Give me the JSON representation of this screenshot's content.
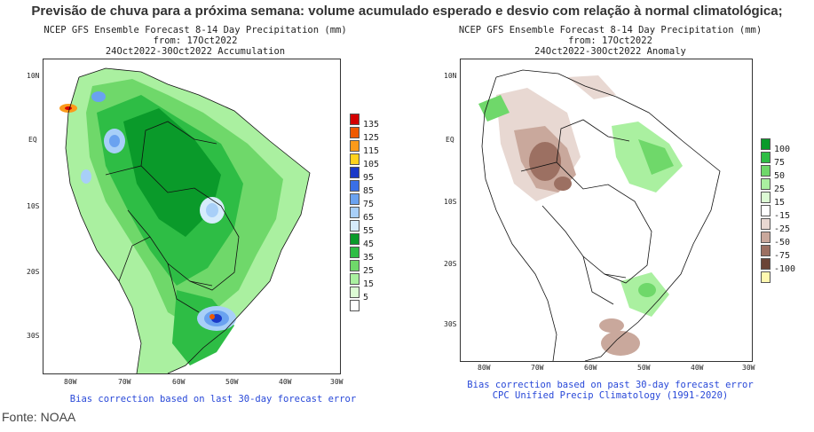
{
  "headline": "Previsão de chuva para a próxima semana: volume acumulado esperado e desvio com relação à normal climatológica;",
  "left_map": {
    "title_line1": "NCEP GFS Ensemble Forecast 8-14 Day Precipitation (mm)",
    "title_line2": "from: 17Oct2022",
    "title_line3": "24Oct2022-30Oct2022 Accumulation",
    "footer_line1": "Bias correction based on last 30-day forecast error",
    "lat_labels": [
      "10N",
      "EQ",
      "10S",
      "20S",
      "30S"
    ],
    "lon_labels": [
      "80W",
      "70W",
      "60W",
      "50W",
      "40W",
      "30W"
    ],
    "legend": [
      {
        "label": "135",
        "color": "#d40000"
      },
      {
        "label": "125",
        "color": "#ef5a00"
      },
      {
        "label": "115",
        "color": "#fb9a1a"
      },
      {
        "label": "105",
        "color": "#ffd21e"
      },
      {
        "label": "95",
        "color": "#1a39c8"
      },
      {
        "label": "85",
        "color": "#3a6fe6"
      },
      {
        "label": "75",
        "color": "#6aa2f0"
      },
      {
        "label": "65",
        "color": "#a8cff8"
      },
      {
        "label": "55",
        "color": "#d6ecfc"
      },
      {
        "label": "45",
        "color": "#0a9a2a"
      },
      {
        "label": "35",
        "color": "#2ebd45"
      },
      {
        "label": "25",
        "color": "#6fd86a"
      },
      {
        "label": "15",
        "color": "#aaf0a0"
      },
      {
        "label": "5",
        "color": "#dcfbd4"
      },
      {
        "label": "",
        "color": "#ffffff"
      }
    ]
  },
  "right_map": {
    "title_line1": "NCEP GFS Ensemble Forecast 8-14 Day Precipitation (mm)",
    "title_line2": "from: 17Oct2022",
    "title_line3": "24Oct2022-30Oct2022 Anomaly",
    "footer_line1": "Bias correction based on past 30-day forecast error",
    "footer_line2": "CPC Unified Precip Climatology (1991-2020)",
    "lat_labels": [
      "10N",
      "EQ",
      "10S",
      "20S",
      "30S"
    ],
    "lon_labels": [
      "80W",
      "70W",
      "60W",
      "50W",
      "40W",
      "30W"
    ],
    "legend": [
      {
        "label": "100",
        "color": "#0a9a2a"
      },
      {
        "label": "75",
        "color": "#2ebd45"
      },
      {
        "label": "50",
        "color": "#6fd86a"
      },
      {
        "label": "25",
        "color": "#aaf0a0"
      },
      {
        "label": "15",
        "color": "#dcfbd4"
      },
      {
        "label": "-15",
        "color": "#ffffff"
      },
      {
        "label": "-25",
        "color": "#e8d8d2"
      },
      {
        "label": "-50",
        "color": "#c9a89c"
      },
      {
        "label": "-75",
        "color": "#9c7062"
      },
      {
        "label": "-100",
        "color": "#6b4436"
      },
      {
        "label": "",
        "color": "#fff8b0"
      }
    ]
  },
  "source": "Fonte: NOAA"
}
